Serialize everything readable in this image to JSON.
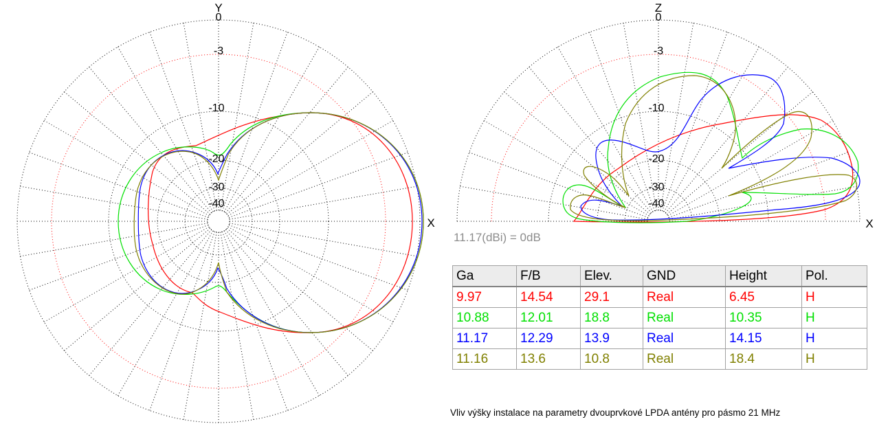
{
  "colors": {
    "series_1": "#ff0000",
    "series_2": "#00e000",
    "series_3": "#0000ff",
    "series_4": "#808000",
    "grid": "#000000",
    "ring_minus3": "#ff0000",
    "note": "#8c8c8c"
  },
  "reference_note": "11.17(dBi) = 0dB",
  "caption": "Vliv výšky instalace na parametry dvouprvkové LPDA antény pro pásmo 21 MHz",
  "table": {
    "headers": [
      "Ga",
      "F/B",
      "Elev.",
      "GND",
      "Height",
      "Pol."
    ],
    "rows": [
      [
        "9.97",
        "14.54",
        "29.1",
        "Real",
        "6.45",
        "H"
      ],
      [
        "10.88",
        "12.01",
        "18.8",
        "Real",
        "10.35",
        "H"
      ],
      [
        "11.17",
        "12.29",
        "13.9",
        "Real",
        "14.15",
        "H"
      ],
      [
        "11.16",
        "13.6",
        "10.8",
        "Real",
        "18.4",
        "H"
      ]
    ],
    "row_colors": [
      "#ff0000",
      "#00e000",
      "#0000ff",
      "#808000"
    ]
  },
  "chart_data": [
    {
      "type": "polar",
      "name": "azimuth",
      "axis_labels": {
        "up": "Y",
        "right": "X"
      },
      "ring_labels": [
        "0",
        "-3",
        "-10",
        "-20",
        "-30",
        "-40"
      ],
      "ring_values_db": [
        0,
        -3,
        -10,
        -20,
        -30,
        -40
      ],
      "series": [
        {
          "gain_dbi": 9.97,
          "front_to_back_db": 14.54,
          "elevation_deg": 29.1,
          "ground": "Real",
          "height_m": 6.45,
          "polarization": "H"
        },
        {
          "gain_dbi": 10.88,
          "front_to_back_db": 12.01,
          "elevation_deg": 18.8,
          "ground": "Real",
          "height_m": 10.35,
          "polarization": "H"
        },
        {
          "gain_dbi": 11.17,
          "front_to_back_db": 12.29,
          "elevation_deg": 13.9,
          "ground": "Real",
          "height_m": 14.15,
          "polarization": "H"
        },
        {
          "gain_dbi": 11.16,
          "front_to_back_db": 13.6,
          "elevation_deg": 10.8,
          "ground": "Real",
          "height_m": 18.4,
          "polarization": "H"
        }
      ]
    },
    {
      "type": "polar",
      "name": "elevation",
      "axis_labels": {
        "up": "Z",
        "right": "X"
      },
      "ring_labels": [
        "0",
        "-3",
        "-10",
        "-20",
        "-30",
        "-40"
      ],
      "ring_values_db": [
        0,
        -3,
        -10,
        -20,
        -30,
        -40
      ],
      "series": [
        {
          "main_lobe_elevation_deg": 29.1,
          "height_m": 6.45
        },
        {
          "main_lobe_elevation_deg": 18.8,
          "height_m": 10.35
        },
        {
          "main_lobe_elevation_deg": 13.9,
          "height_m": 14.15
        },
        {
          "main_lobe_elevation_deg": 10.8,
          "height_m": 18.4
        }
      ]
    }
  ]
}
